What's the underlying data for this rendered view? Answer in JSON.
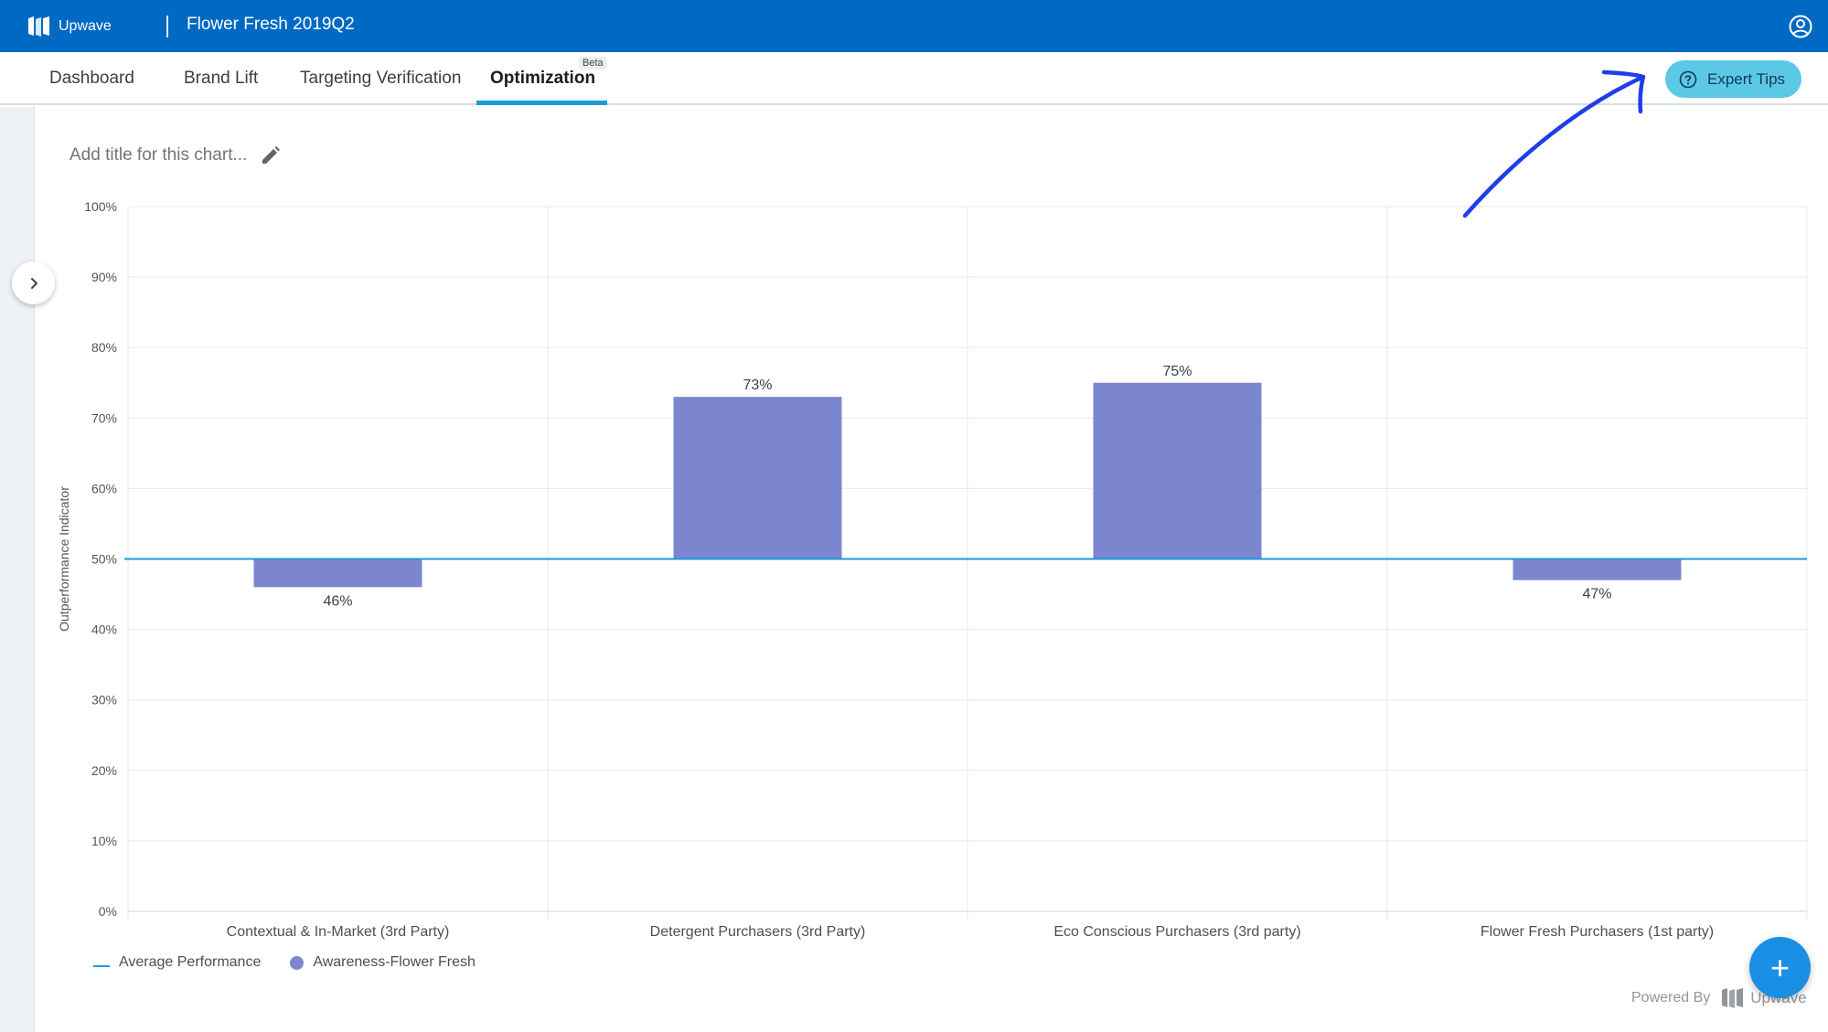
{
  "app": {
    "logo_text": "Upwave",
    "project_title": "Flower Fresh 2019Q2"
  },
  "nav": {
    "tabs": [
      {
        "label": "Dashboard"
      },
      {
        "label": "Brand Lift"
      },
      {
        "label": "Targeting Verification"
      },
      {
        "label": "Optimization",
        "active": true,
        "badge": "Beta"
      }
    ],
    "expert_tips_label": "Expert Tips"
  },
  "chart_title_placeholder": "Add title for this chart...",
  "chart_data": {
    "type": "bar",
    "title": "",
    "ylabel": "Outperformance Indicator",
    "xlabel": "",
    "ylim": [
      0,
      100
    ],
    "y_ticks": [
      "0%",
      "10%",
      "20%",
      "30%",
      "40%",
      "50%",
      "60%",
      "70%",
      "80%",
      "90%",
      "100%"
    ],
    "baseline": 50,
    "categories": [
      "Contextual & In-Market (3rd Party)",
      "Detergent Purchasers (3rd Party)",
      "Eco Conscious Purchasers (3rd party)",
      "Flower Fresh Purchasers (1st party)"
    ],
    "series": [
      {
        "name": "Awareness-Flower Fresh",
        "values": [
          46,
          73,
          75,
          47
        ],
        "labels": [
          "46%",
          "73%",
          "75%",
          "47%"
        ],
        "color": "#7b86cf"
      }
    ],
    "reference_line": {
      "name": "Average Performance",
      "value": 50,
      "color": "#1a9ad8"
    },
    "grid": true,
    "legend_position": "bottom-left"
  },
  "legend": {
    "avg_label": "Average Performance",
    "series_label": "Awareness-Flower Fresh"
  },
  "footer": {
    "powered_by": "Powered By",
    "brand": "Upwave"
  },
  "colors": {
    "topbar": "#0069c3",
    "accent": "#1a9ad8",
    "bar": "#7b86cf",
    "expert_button": "#5bc8e6",
    "fab": "#1a8fe3"
  }
}
